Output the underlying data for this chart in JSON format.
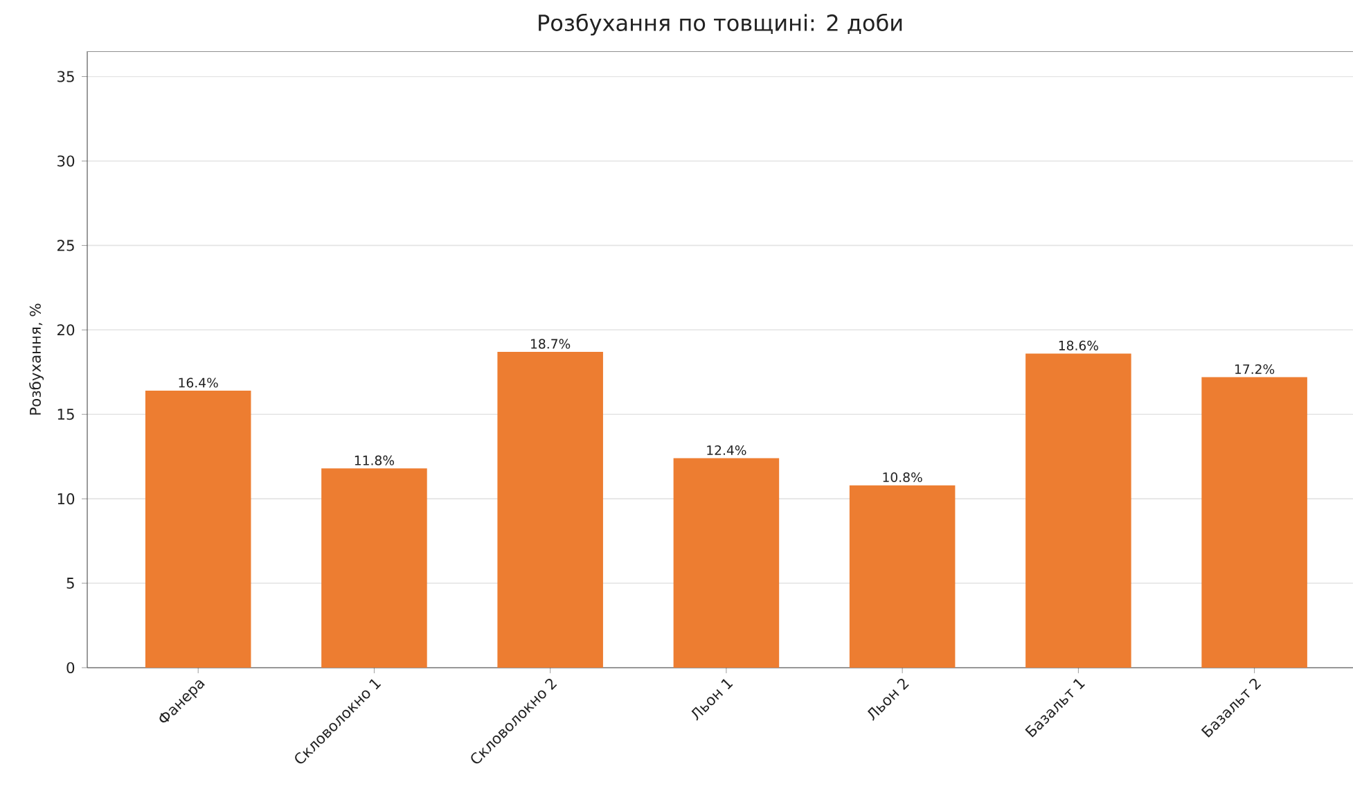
{
  "chart_data": {
    "type": "bar",
    "title": "Розбухання по товщині: 2 доби",
    "ylabel": "Розбухання, %",
    "categories": [
      "Фанера",
      "Скловолокно 1",
      "Скловолокно 2",
      "Льон 1",
      "Льон 2",
      "Базальт 1",
      "Базальт 2"
    ],
    "values": [
      16.4,
      11.8,
      18.7,
      12.4,
      10.8,
      18.6,
      17.2
    ],
    "value_labels": [
      "16.4%",
      "11.8%",
      "18.7%",
      "12.4%",
      "10.8%",
      "18.6%",
      "17.2%"
    ],
    "color": "#ed7d31",
    "ylim": [
      0,
      36.5
    ],
    "yticks": [
      0,
      5,
      10,
      15,
      20,
      25,
      30,
      35
    ],
    "grid": "y"
  }
}
